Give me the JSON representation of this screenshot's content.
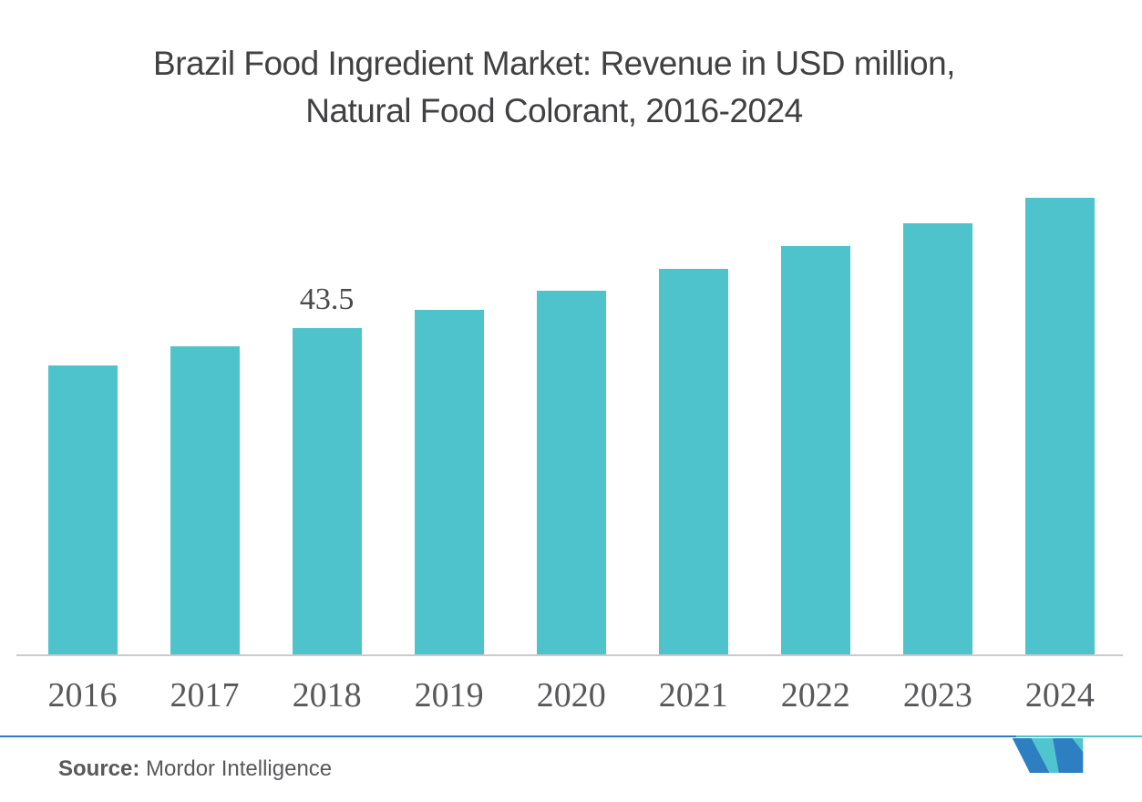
{
  "title": {
    "line1": "Brazil Food Ingredient Market: Revenue in USD million,",
    "line2": "Natural Food Colorant, 2016-2024"
  },
  "chart_data": {
    "type": "bar",
    "title": "Brazil Food Ingredient Market: Revenue in USD million, Natural Food Colorant, 2016-2024",
    "categories": [
      "2016",
      "2017",
      "2018",
      "2019",
      "2020",
      "2021",
      "2022",
      "2023",
      "2024"
    ],
    "values": [
      38.6,
      41.1,
      43.5,
      46.0,
      48.6,
      51.5,
      54.5,
      57.6,
      60.9
    ],
    "annotation": {
      "category": "2018",
      "text": "43.5"
    },
    "xlabel": "",
    "ylabel": "",
    "ylim": [
      0,
      65
    ],
    "grid": false,
    "legend": "none",
    "bar_color": "#4FC3CC",
    "axis_line_color": "#CBCBCB",
    "label_color": "#58585B",
    "annotation_color": "#4A4A4C",
    "title_color": "#414042"
  },
  "footer": {
    "source_label": "Source:",
    "source_text": " Mordor Intelligence",
    "divider_blue": "#2E7FC1",
    "divider_teal": "#4FC4CD",
    "logo": {
      "name": "mordor-intelligence-logo",
      "blue": "#2E7FC1",
      "teal": "#4FC5CE"
    }
  }
}
